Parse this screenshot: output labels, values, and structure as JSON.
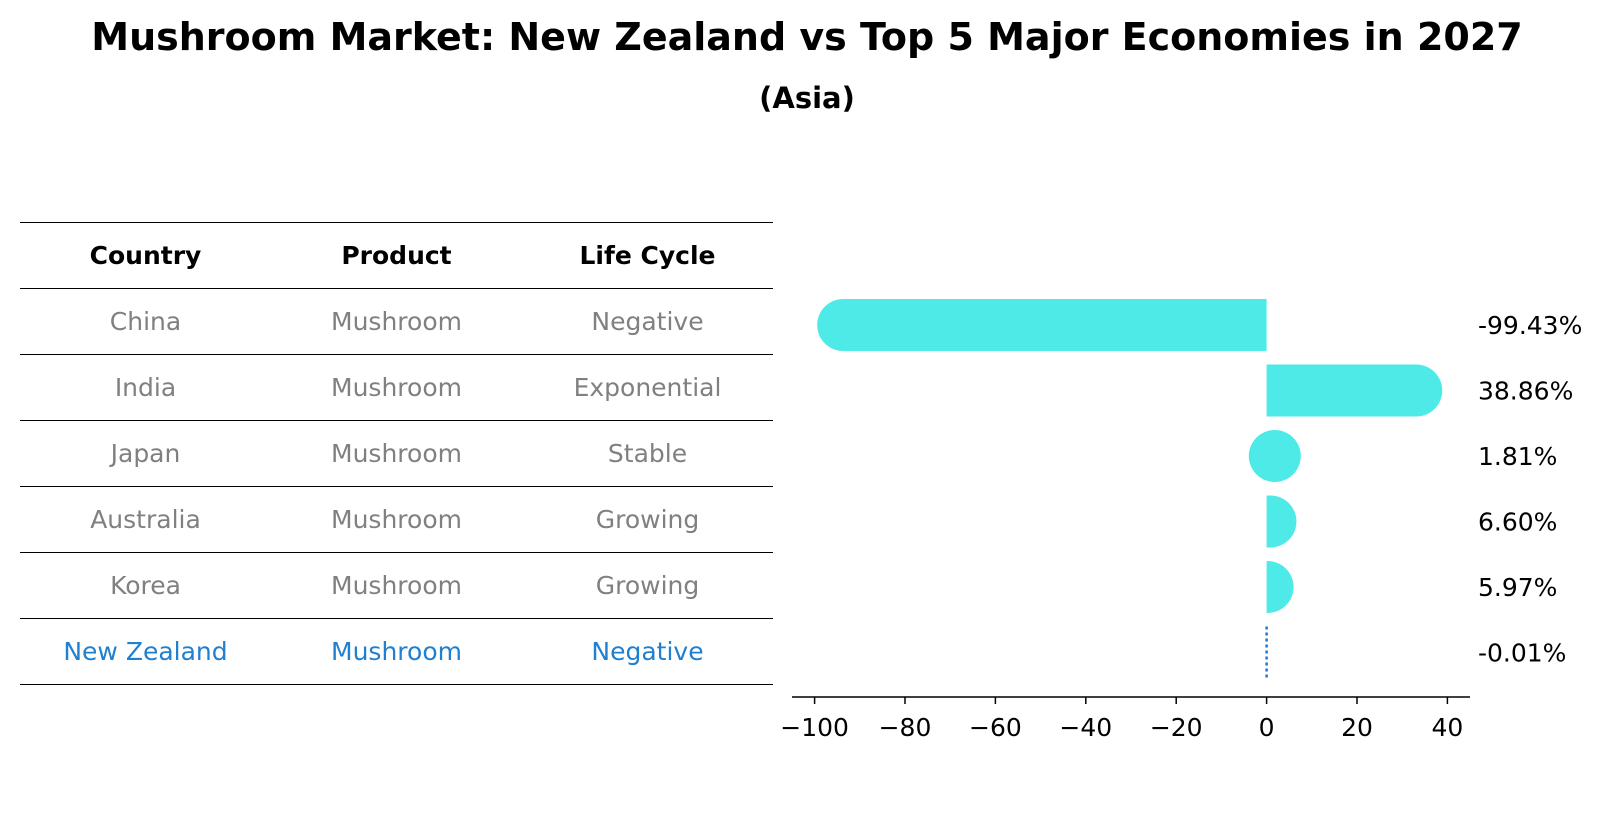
{
  "title": "Mushroom Market: New Zealand vs Top 5 Major Economies in 2027",
  "subtitle": "(Asia)",
  "table": {
    "columns": [
      "Country",
      "Product",
      "Life Cycle"
    ],
    "rows": [
      {
        "country": "China",
        "product": "Mushroom",
        "life_cycle": "Negative"
      },
      {
        "country": "India",
        "product": "Mushroom",
        "life_cycle": "Exponential"
      },
      {
        "country": "Japan",
        "product": "Mushroom",
        "life_cycle": "Stable"
      },
      {
        "country": "Australia",
        "product": "Mushroom",
        "life_cycle": "Growing"
      },
      {
        "country": "Korea",
        "product": "Mushroom",
        "life_cycle": "Growing"
      },
      {
        "country": "New Zealand",
        "product": "Mushroom",
        "life_cycle": "Negative"
      }
    ]
  },
  "chart_data": {
    "type": "bar",
    "orientation": "horizontal",
    "categories": [
      "China",
      "India",
      "Japan",
      "Australia",
      "Korea",
      "New Zealand"
    ],
    "values": [
      -99.43,
      38.86,
      1.81,
      6.6,
      5.97,
      -0.01
    ],
    "value_labels": [
      "-99.43%",
      "38.86%",
      "1.81%",
      "6.60%",
      "5.97%",
      "-0.01%"
    ],
    "xlim": [
      -105,
      45
    ],
    "xticks": [
      -100,
      -80,
      -60,
      -40,
      -20,
      0,
      20,
      40
    ],
    "xtick_labels": [
      "−100",
      "−80",
      "−60",
      "−40",
      "−20",
      "0",
      "20",
      "40"
    ],
    "highlight_index": 5,
    "grid": false,
    "legend": "none"
  },
  "colors": {
    "bar": "#4eeae8",
    "highlight_line": "#1f77d4",
    "highlight_text": "#1f7fd0",
    "muted_text": "#808080"
  }
}
